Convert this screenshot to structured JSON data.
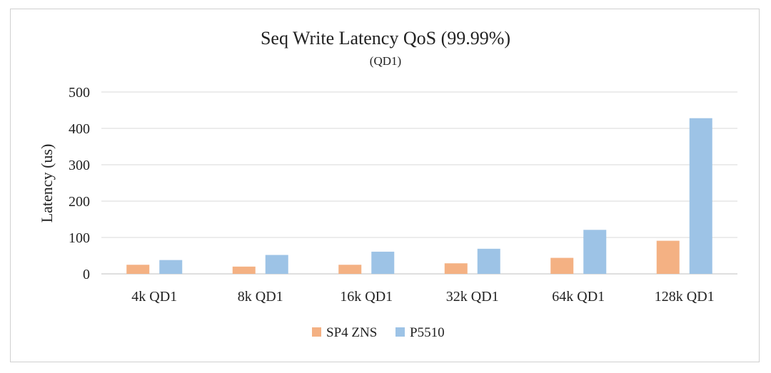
{
  "chart_data": {
    "type": "bar",
    "title": "Seq Write Latency QoS (99.99%)",
    "subtitle": "(QD1)",
    "xlabel": "",
    "ylabel": "Latency  (us)",
    "ylim": [
      0,
      500
    ],
    "yticks": [
      0,
      100,
      200,
      300,
      400,
      500
    ],
    "grid": true,
    "legend_position": "bottom",
    "categories": [
      "4k QD1",
      "8k QD1",
      "16k QD1",
      "32k QD1",
      "64k QD1",
      "128k QD1"
    ],
    "series": [
      {
        "name": "SP4 ZNS",
        "color": "#f4b183",
        "values": [
          25,
          20,
          25,
          29,
          44,
          91
        ]
      },
      {
        "name": "P5510",
        "color": "#9dc3e6",
        "values": [
          38,
          52,
          61,
          69,
          121,
          428
        ]
      }
    ]
  }
}
